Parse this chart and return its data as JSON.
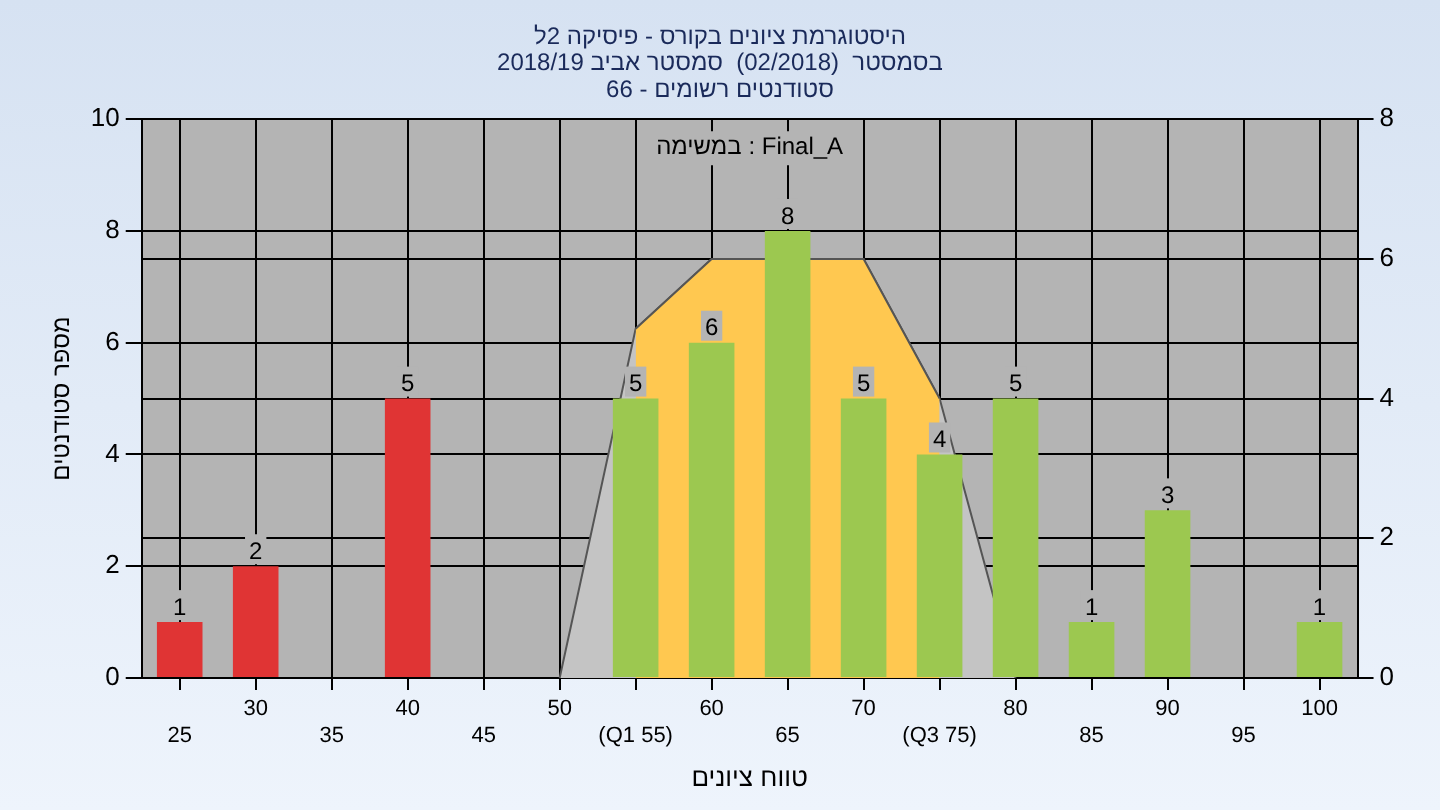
{
  "chart_data": {
    "type": "bar",
    "title": "היסטוגרמת ציונים בקורס - פיסיקה 2ל\nבסמסטר  (02/2018)  סמסטר אביב 2018/19\nסטודנטים רשומים - 66",
    "xlabel": "טווח ציונים",
    "ylabel": "מספר סטודנטים",
    "annotations": [
      "במשימה : Final_A"
    ],
    "categories": [
      "25",
      "30",
      "35",
      "40",
      "45",
      "50",
      "(Q1 55)",
      "60",
      "65",
      "70",
      "(Q3 75)",
      "80",
      "85",
      "90",
      "95",
      "100"
    ],
    "series": [
      {
        "type": "bar",
        "values": [
          1,
          2,
          0,
          5,
          0,
          0,
          5,
          6,
          8,
          5,
          4,
          5,
          1,
          3,
          0,
          1
        ],
        "colors": [
          "#e03434",
          "#e03434",
          "#e03434",
          "#e03434",
          "#e03434",
          "#e03434",
          "#9cc850",
          "#9cc850",
          "#9cc850",
          "#9cc850",
          "#9cc850",
          "#9cc850",
          "#9cc850",
          "#9cc850",
          "#9cc850",
          "#9cc850"
        ],
        "value_labels": [
          "1",
          "2",
          null,
          "5",
          null,
          null,
          "5",
          "6",
          "8",
          "5",
          "4",
          "5",
          "1",
          "3",
          null,
          "1"
        ]
      },
      {
        "type": "area",
        "axis": "y2",
        "color": "#ffc850",
        "values": [
          null,
          null,
          null,
          null,
          null,
          null,
          5,
          6,
          6,
          6,
          4,
          null,
          null,
          null,
          null,
          null
        ]
      },
      {
        "type": "area",
        "axis": "y2",
        "color": "#c4c4c4",
        "values": [
          null,
          null,
          null,
          null,
          null,
          0,
          5,
          6,
          6,
          6,
          4,
          0,
          null,
          null,
          null,
          null
        ]
      }
    ],
    "ylim": [
      0,
      10
    ],
    "yticks": [
      0,
      2,
      4,
      6,
      8,
      10
    ],
    "y2lim": [
      0,
      8
    ],
    "y2ticks": [
      0,
      2,
      4,
      6,
      8
    ],
    "grid": true
  }
}
